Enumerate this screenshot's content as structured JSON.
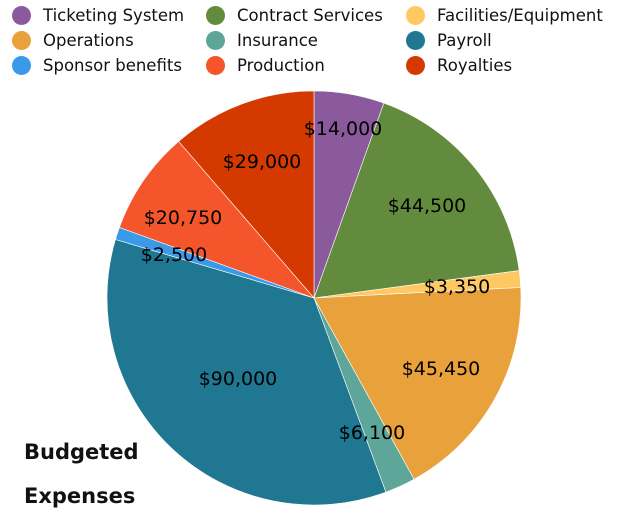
{
  "chart_data": {
    "type": "pie",
    "title": "Budgeted Expenses",
    "title_lines": [
      "Budgeted",
      "Expenses"
    ],
    "legend_position": "top",
    "slices": [
      {
        "name": "Ticketing System",
        "value": 14000,
        "label": "$14,000",
        "color": "#8b5a9c"
      },
      {
        "name": "Contract Services",
        "value": 44500,
        "label": "$44,500",
        "color": "#638b3e"
      },
      {
        "name": "Facilities/Equipment",
        "value": 3350,
        "label": "$3,350",
        "color": "#fec863"
      },
      {
        "name": "Operations",
        "value": 45450,
        "label": "$45,450",
        "color": "#e9a23b"
      },
      {
        "name": "Insurance",
        "value": 6100,
        "label": "$6,100",
        "color": "#5fa69a"
      },
      {
        "name": "Payroll",
        "value": 90000,
        "label": "$90,000",
        "color": "#1f7791"
      },
      {
        "name": "Sponsor benefits",
        "value": 2500,
        "label": "$2,500",
        "color": "#3a9ae8"
      },
      {
        "name": "Production",
        "value": 20750,
        "label": "$20,750",
        "color": "#f4552b"
      },
      {
        "name": "Royalties",
        "value": 29000,
        "label": "$29,000",
        "color": "#d43a00"
      }
    ]
  }
}
